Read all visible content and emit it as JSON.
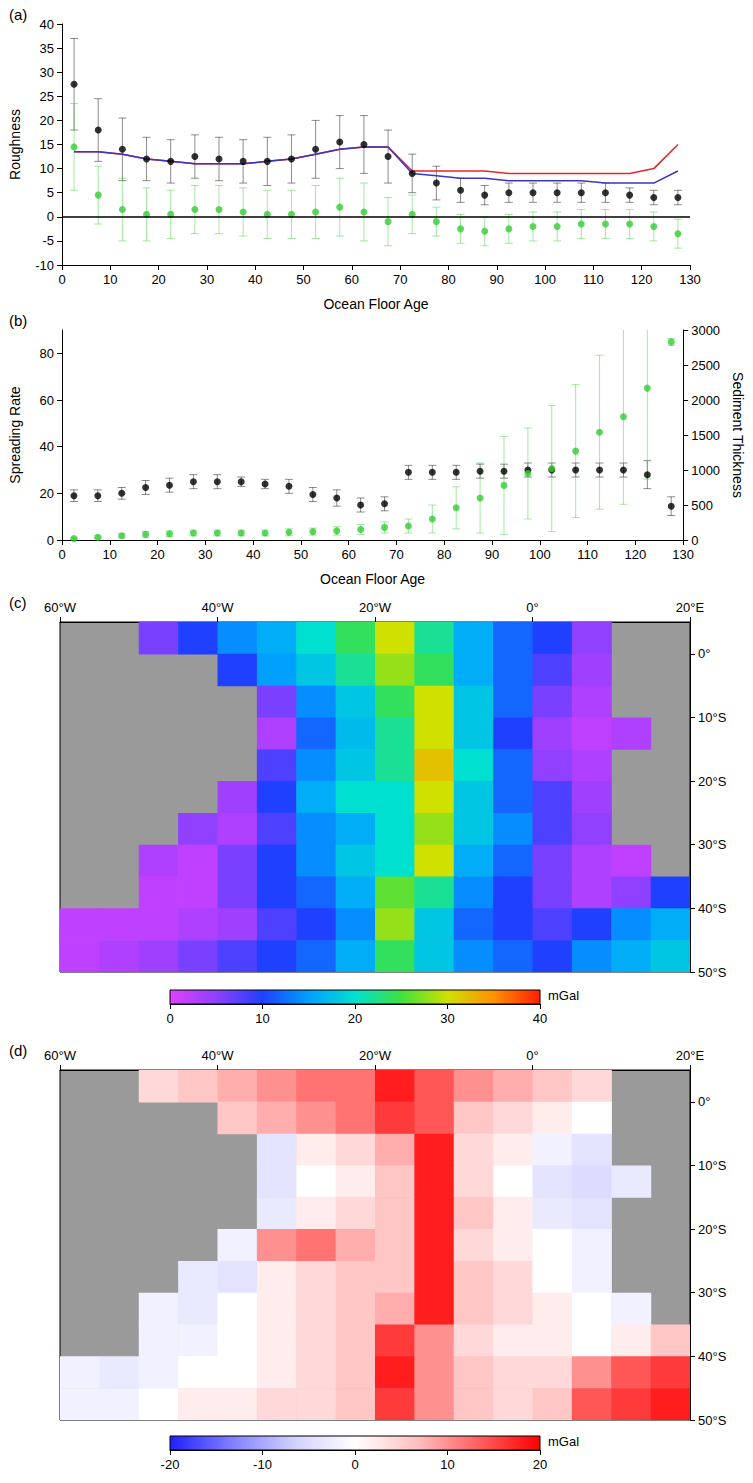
{
  "chart_data": [
    {
      "type": "scatter",
      "panel_label": "(a)",
      "xlabel": "Ocean Floor Age",
      "ylabel": "Roughness",
      "xlim": [
        0,
        130
      ],
      "xticks": [
        0,
        10,
        20,
        30,
        40,
        50,
        60,
        70,
        80,
        90,
        100,
        110,
        120,
        130
      ],
      "ylim": [
        -10,
        40
      ],
      "yticks": [
        -10,
        -5,
        0,
        5,
        10,
        15,
        20,
        25,
        30,
        35,
        40
      ],
      "hlines": [
        0
      ],
      "x": [
        2.5,
        7.5,
        12.5,
        17.5,
        22.5,
        27.5,
        32.5,
        37.5,
        42.5,
        47.5,
        52.5,
        57.5,
        62.5,
        67.5,
        72.5,
        77.5,
        82.5,
        87.5,
        92.5,
        97.5,
        102.5,
        107.5,
        112.5,
        117.5,
        122.5,
        127.5
      ],
      "series": [
        {
          "type": "scatter",
          "color": "#000000",
          "marker": "circle",
          "values": [
            27.5,
            18,
            14,
            12,
            11.5,
            12.5,
            12,
            11.5,
            11.5,
            12,
            14,
            15.5,
            15,
            12.5,
            9,
            7,
            5.5,
            4.5,
            5,
            5,
            5,
            5,
            5,
            4.5,
            4,
            4
          ],
          "errors": [
            9.5,
            6.5,
            6.5,
            4.5,
            4.5,
            4.5,
            4.5,
            4.5,
            5,
            5,
            6,
            5.5,
            6,
            5.5,
            4,
            3.5,
            2.5,
            2,
            2,
            2,
            2,
            2,
            2,
            1.5,
            1.5,
            1.5
          ]
        },
        {
          "type": "scatter",
          "color": "#33cc33",
          "marker": "circle",
          "values": [
            14.5,
            4.5,
            1.5,
            0.5,
            0.5,
            1.5,
            1.5,
            1,
            0.5,
            0.5,
            1,
            2,
            1,
            -1,
            0.5,
            -1,
            -2.5,
            -3,
            -2.5,
            -2,
            -2,
            -1.5,
            -1.5,
            -1.5,
            -2,
            -3.5
          ],
          "errors": [
            9,
            6,
            6.5,
            5.5,
            5,
            5,
            5,
            5,
            5,
            5,
            5.5,
            6,
            6,
            5,
            4,
            3,
            3,
            3,
            3,
            3,
            3,
            3,
            3,
            3,
            3,
            3
          ]
        },
        {
          "type": "line",
          "color": "#e8262a",
          "line_style": "solid",
          "values": [
            13.5,
            13.5,
            13,
            12,
            11.5,
            11,
            11,
            11,
            11.5,
            12,
            13,
            14,
            14.5,
            14.5,
            9.5,
            9.5,
            9.5,
            9.5,
            9,
            9,
            9,
            9,
            9,
            9,
            10,
            15
          ]
        },
        {
          "type": "line",
          "color": "#3a36c4",
          "line_style": "solid",
          "values": [
            13.5,
            13.5,
            13,
            12,
            11.5,
            11,
            11,
            11,
            11.5,
            12,
            13,
            14,
            14.5,
            14.5,
            9,
            8.5,
            8,
            8,
            7.5,
            7.5,
            7.5,
            7.5,
            7,
            7,
            7,
            9.5
          ]
        }
      ]
    },
    {
      "type": "scatter",
      "panel_label": "(b)",
      "xlabel": "Ocean Floor Age",
      "ylabel": "Spreading Rate",
      "y2label": "Sediment Thickness",
      "xlim": [
        0,
        130
      ],
      "xticks": [
        0,
        10,
        20,
        30,
        40,
        50,
        60,
        70,
        80,
        90,
        100,
        110,
        120,
        130
      ],
      "ylim": [
        0,
        90
      ],
      "yticks": [
        0,
        20,
        40,
        60,
        80
      ],
      "y2lim": [
        0,
        3000
      ],
      "y2ticks": [
        0,
        500,
        1000,
        1500,
        2000,
        2500,
        3000
      ],
      "x": [
        2.5,
        7.5,
        12.5,
        17.5,
        22.5,
        27.5,
        32.5,
        37.5,
        42.5,
        47.5,
        52.5,
        57.5,
        62.5,
        67.5,
        72.5,
        77.5,
        82.5,
        87.5,
        92.5,
        97.5,
        102.5,
        107.5,
        112.5,
        117.5,
        122.5,
        127.5
      ],
      "series": [
        {
          "type": "scatter",
          "color": "#000000",
          "marker": "circle",
          "axis": "y",
          "values": [
            19,
            19,
            20,
            22.5,
            23.5,
            25,
            25,
            25,
            24,
            23,
            19.5,
            18,
            15,
            15.5,
            29,
            29,
            29,
            29.5,
            29.5,
            30,
            30,
            30,
            30,
            30,
            28,
            14.5
          ],
          "errors": [
            2.5,
            2.5,
            2.5,
            3,
            3,
            3,
            3,
            2,
            2,
            3,
            3,
            3.5,
            3,
            3,
            3,
            3,
            3,
            3,
            3,
            3,
            3,
            3,
            3,
            3,
            6,
            4
          ]
        },
        {
          "type": "scatter",
          "color": "#33cc33",
          "marker": "circle",
          "axis": "y2",
          "values": [
            20,
            40,
            60,
            80,
            90,
            100,
            100,
            100,
            100,
            110,
            120,
            130,
            150,
            180,
            200,
            300,
            460,
            600,
            780,
            950,
            1020,
            1270,
            1540,
            1760,
            2170,
            2830
          ],
          "errors": [
            10,
            20,
            30,
            40,
            40,
            40,
            40,
            40,
            40,
            50,
            50,
            60,
            70,
            80,
            100,
            200,
            300,
            500,
            700,
            650,
            900,
            950,
            1100,
            1250,
            1300,
            50
          ]
        }
      ]
    },
    {
      "type": "heatmap",
      "panel_label": "(c)",
      "xlim": [
        -60,
        20
      ],
      "xticks": [
        {
          "value": -60,
          "label": "60°W"
        },
        {
          "value": -40,
          "label": "40°W"
        },
        {
          "value": -20,
          "label": "20°W"
        },
        {
          "value": 0,
          "label": "0°"
        },
        {
          "value": 20,
          "label": "20°E"
        }
      ],
      "ylim": [
        -50,
        5
      ],
      "yticks": [
        {
          "value": 0,
          "label": "0°"
        },
        {
          "value": -10,
          "label": "10°S"
        },
        {
          "value": -20,
          "label": "20°S"
        },
        {
          "value": -30,
          "label": "30°S"
        },
        {
          "value": -40,
          "label": "40°S"
        },
        {
          "value": -50,
          "label": "50°S"
        }
      ],
      "x": [
        -57.5,
        -52.5,
        -47.5,
        -42.5,
        -37.5,
        -32.5,
        -27.5,
        -22.5,
        -17.5,
        -12.5,
        -7.5,
        -2.5,
        2.5,
        7.5,
        12.5,
        17.5
      ],
      "y": [
        2.5,
        -2.5,
        -7.5,
        -12.5,
        -17.5,
        -22.5,
        -27.5,
        -32.5,
        -37.5,
        -42.5,
        -47.5
      ],
      "cells": [
        [
          null,
          null,
          6,
          10,
          14,
          16,
          20,
          24,
          30,
          22,
          16,
          12,
          10,
          5,
          null,
          null
        ],
        [
          null,
          null,
          null,
          null,
          10,
          15,
          18,
          22,
          28,
          24,
          16,
          12,
          8,
          4,
          null,
          null
        ],
        [
          null,
          null,
          null,
          null,
          null,
          6,
          14,
          18,
          24,
          30,
          18,
          12,
          6,
          3,
          null,
          null
        ],
        [
          null,
          null,
          null,
          null,
          null,
          3,
          12,
          17,
          22,
          30,
          18,
          10,
          4,
          2,
          3,
          null
        ],
        [
          null,
          null,
          null,
          null,
          null,
          8,
          14,
          18,
          22,
          32,
          20,
          12,
          5,
          3,
          null,
          null
        ],
        [
          null,
          null,
          null,
          null,
          4,
          10,
          16,
          20,
          20,
          30,
          18,
          12,
          8,
          4,
          null,
          null
        ],
        [
          null,
          null,
          null,
          5,
          3,
          8,
          14,
          16,
          20,
          28,
          18,
          14,
          8,
          5,
          null,
          null
        ],
        [
          null,
          null,
          3,
          2,
          6,
          10,
          14,
          18,
          20,
          30,
          16,
          12,
          6,
          3,
          2,
          null
        ],
        [
          null,
          null,
          2,
          2,
          6,
          10,
          12,
          16,
          26,
          22,
          14,
          10,
          6,
          3,
          5,
          10
        ],
        [
          2,
          2,
          2,
          3,
          4,
          8,
          10,
          14,
          28,
          18,
          12,
          10,
          8,
          10,
          14,
          16
        ],
        [
          2,
          3,
          4,
          6,
          8,
          10,
          12,
          16,
          24,
          18,
          14,
          12,
          10,
          14,
          16,
          18
        ]
      ],
      "colorbar": {
        "range": [
          0,
          40
        ],
        "ticks": [
          0,
          10,
          20,
          30,
          40
        ],
        "label": "mGal",
        "colors": [
          "#e040ff",
          "#9040ff",
          "#2040ff",
          "#00a0ff",
          "#00e0d0",
          "#40e040",
          "#d0e000",
          "#ff9000",
          "#ff2000"
        ]
      }
    },
    {
      "type": "heatmap",
      "panel_label": "(d)",
      "xlim": [
        -60,
        20
      ],
      "xticks": [
        {
          "value": -60,
          "label": "60°W"
        },
        {
          "value": -40,
          "label": "40°W"
        },
        {
          "value": -20,
          "label": "20°W"
        },
        {
          "value": 0,
          "label": "0°"
        },
        {
          "value": 20,
          "label": "20°E"
        }
      ],
      "ylim": [
        -50,
        5
      ],
      "yticks": [
        {
          "value": 0,
          "label": "0°"
        },
        {
          "value": -10,
          "label": "10°S"
        },
        {
          "value": -20,
          "label": "20°S"
        },
        {
          "value": -30,
          "label": "30°S"
        },
        {
          "value": -40,
          "label": "40°S"
        },
        {
          "value": -50,
          "label": "50°S"
        }
      ],
      "x": [
        -57.5,
        -52.5,
        -47.5,
        -42.5,
        -37.5,
        -32.5,
        -27.5,
        -22.5,
        -17.5,
        -12.5,
        -7.5,
        -2.5,
        2.5,
        7.5,
        12.5,
        17.5
      ],
      "y": [
        2.5,
        -2.5,
        -7.5,
        -12.5,
        -17.5,
        -22.5,
        -27.5,
        -32.5,
        -37.5,
        -42.5,
        -47.5
      ],
      "cells": [
        [
          null,
          null,
          4,
          6,
          8,
          10,
          12,
          12,
          18,
          14,
          10,
          8,
          6,
          4,
          null,
          null
        ],
        [
          null,
          null,
          null,
          null,
          6,
          8,
          10,
          12,
          16,
          14,
          6,
          4,
          2,
          0,
          null,
          null
        ],
        [
          null,
          null,
          null,
          null,
          null,
          -4,
          2,
          4,
          8,
          18,
          4,
          2,
          -2,
          -4,
          null,
          null
        ],
        [
          null,
          null,
          null,
          null,
          null,
          -4,
          0,
          2,
          6,
          18,
          4,
          0,
          -4,
          -5,
          -3,
          null
        ],
        [
          null,
          null,
          null,
          null,
          null,
          -3,
          2,
          4,
          6,
          18,
          6,
          2,
          -3,
          -4,
          null,
          null
        ],
        [
          null,
          null,
          null,
          null,
          -2,
          10,
          12,
          8,
          6,
          18,
          4,
          2,
          0,
          -2,
          null,
          null
        ],
        [
          null,
          null,
          null,
          -3,
          -4,
          2,
          4,
          6,
          6,
          18,
          6,
          4,
          0,
          -2,
          null,
          null
        ],
        [
          null,
          null,
          -2,
          -3,
          0,
          2,
          4,
          6,
          8,
          18,
          6,
          4,
          2,
          0,
          -2,
          null
        ],
        [
          null,
          null,
          -2,
          -2,
          0,
          2,
          4,
          6,
          16,
          10,
          4,
          2,
          2,
          0,
          2,
          6
        ],
        [
          -2,
          -3,
          -2,
          0,
          0,
          2,
          4,
          6,
          18,
          10,
          6,
          4,
          4,
          10,
          14,
          16
        ],
        [
          -2,
          -2,
          0,
          2,
          2,
          4,
          4,
          6,
          16,
          10,
          6,
          4,
          6,
          14,
          16,
          18
        ]
      ],
      "colorbar": {
        "range": [
          -20,
          20
        ],
        "ticks": [
          -20,
          -10,
          0,
          10,
          20
        ],
        "label": "mGal",
        "colors": [
          "#2020ff",
          "#8080ff",
          "#d0d0ff",
          "#ffffff",
          "#ffc0c0",
          "#ff6060",
          "#ff0000"
        ]
      }
    }
  ]
}
